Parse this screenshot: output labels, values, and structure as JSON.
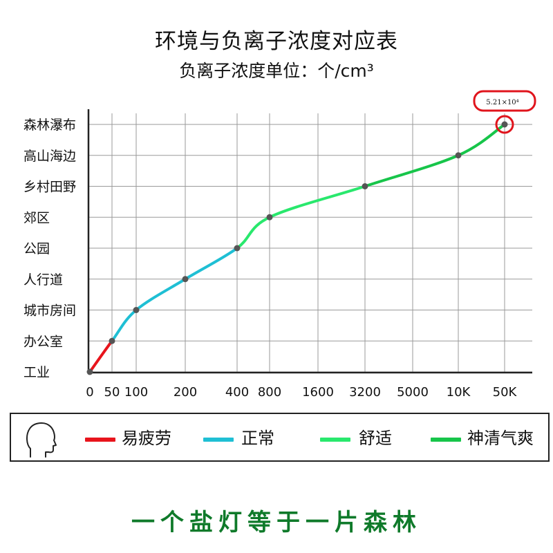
{
  "title": "环境与负离子浓度对应表",
  "subtitle": "负离子浓度单位：个/cm³",
  "callout_label": "5.21×10⁴",
  "colors": {
    "fatigue": "#e8141c",
    "normal": "#1fbfd4",
    "comfortable": "#29e86d",
    "refreshing": "#17c54a",
    "point": "#555555",
    "callout": "#e0141c"
  },
  "legend": {
    "icon": "head-profile-icon",
    "items": [
      {
        "label": "易疲劳",
        "color": "#e8141c"
      },
      {
        "label": "正常",
        "color": "#1fbfd4"
      },
      {
        "label": "舒适",
        "color": "#29e86d"
      },
      {
        "label": "神清气爽",
        "color": "#17c54a"
      }
    ]
  },
  "slogan": "一个盐灯等于一片森林",
  "chart_data": {
    "type": "line",
    "title": "环境与负离子浓度对应表",
    "xlabel": "",
    "ylabel": "",
    "x_ticks": [
      "0",
      "50",
      "100",
      "200",
      "400",
      "800",
      "1600",
      "3200",
      "5000",
      "10K",
      "50K"
    ],
    "y_categories": [
      "工业",
      "办公室",
      "城市房间",
      "人行道",
      "公园",
      "郊区",
      "乡村田野",
      "高山海边",
      "森林瀑布"
    ],
    "grid": true,
    "points": [
      {
        "environment": "工业",
        "x": "0",
        "segment": "fatigue"
      },
      {
        "environment": "办公室",
        "x": "50",
        "segment": "fatigue"
      },
      {
        "environment": "城市房间",
        "x": "100",
        "segment": "normal"
      },
      {
        "environment": "人行道",
        "x": "200",
        "segment": "normal"
      },
      {
        "environment": "公园",
        "x": "400",
        "segment": "normal"
      },
      {
        "environment": "郊区",
        "x": "800",
        "segment": "comfortable"
      },
      {
        "environment": "乡村田野",
        "x": "3200",
        "segment": "comfortable"
      },
      {
        "environment": "高山海边",
        "x": "10K",
        "segment": "refreshing"
      },
      {
        "environment": "森林瀑布",
        "x": "50K",
        "segment": "refreshing"
      }
    ],
    "highlight": {
      "environment": "森林瀑布",
      "value": "5.21×10⁴"
    }
  }
}
